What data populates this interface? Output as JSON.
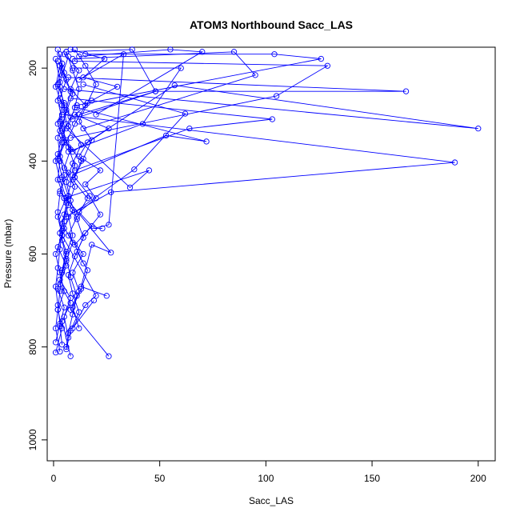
{
  "chart_data": {
    "type": "line",
    "title": "ATOM3 Northbound Sacc_LAS",
    "xlabel": "Sacc_LAS",
    "ylabel": "Pressure (mbar)",
    "xlim": [
      -3,
      208
    ],
    "ylim": [
      1045,
      155
    ],
    "y_reversed": true,
    "x_ticks": [
      0,
      50,
      100,
      150,
      200
    ],
    "y_ticks": [
      200,
      400,
      600,
      800,
      1000
    ],
    "grid": false,
    "legend": "none",
    "line_color": "#0000ff",
    "marker": "open-circle",
    "series": [
      {
        "x": [
          2,
          4,
          3,
          5,
          6,
          4,
          3,
          2,
          5,
          7,
          9,
          6,
          4,
          3,
          2,
          1,
          3
        ],
        "y": [
          160,
          200,
          240,
          280,
          320,
          360,
          400,
          440,
          480,
          520,
          560,
          600,
          640,
          680,
          720,
          760,
          810
        ]
      },
      {
        "x": [
          3,
          5,
          8,
          6,
          4,
          7,
          10,
          8,
          6,
          5,
          4,
          6,
          8,
          11,
          9,
          7,
          6
        ],
        "y": [
          170,
          210,
          250,
          290,
          330,
          370,
          410,
          450,
          490,
          530,
          570,
          610,
          650,
          690,
          730,
          770,
          800
        ]
      },
      {
        "x": [
          1,
          3,
          2,
          4,
          2,
          3,
          5,
          3,
          2,
          4,
          3,
          2,
          1,
          2,
          3,
          1
        ],
        "y": [
          180,
          230,
          270,
          310,
          350,
          390,
          430,
          470,
          510,
          550,
          590,
          630,
          670,
          710,
          750,
          790
        ]
      },
      {
        "x": [
          6,
          9,
          12,
          10,
          7,
          13,
          9,
          6,
          8,
          11,
          14,
          10,
          7,
          9,
          12,
          8,
          6
        ],
        "y": [
          165,
          205,
          245,
          285,
          325,
          365,
          405,
          445,
          485,
          525,
          565,
          605,
          645,
          685,
          725,
          765,
          805
        ]
      },
      {
        "x": [
          4,
          2,
          5,
          3,
          6,
          2,
          4,
          7,
          5,
          3,
          6,
          4,
          2,
          5,
          3,
          4
        ],
        "y": [
          190,
          235,
          275,
          315,
          355,
          395,
          435,
          475,
          515,
          555,
          595,
          635,
          675,
          715,
          755,
          795
        ]
      },
      {
        "x": [
          10,
          15,
          20,
          16,
          12,
          18,
          14,
          10,
          17,
          22,
          15,
          11,
          16,
          13,
          9,
          12
        ],
        "y": [
          160,
          195,
          235,
          275,
          315,
          355,
          395,
          435,
          475,
          515,
          555,
          595,
          635,
          675,
          715,
          760
        ]
      },
      {
        "x": [
          7,
          4,
          9,
          6,
          3,
          8,
          5,
          10,
          7,
          4,
          9,
          6,
          3,
          8,
          5,
          7
        ],
        "y": [
          175,
          215,
          255,
          295,
          335,
          375,
          415,
          455,
          495,
          535,
          575,
          615,
          655,
          695,
          735,
          780
        ]
      },
      {
        "x": [
          2,
          6,
          3,
          8,
          4,
          2,
          7,
          3,
          9,
          5,
          2,
          6,
          3,
          8,
          4,
          8
        ],
        "y": [
          185,
          225,
          265,
          305,
          345,
          385,
          425,
          465,
          505,
          545,
          585,
          625,
          665,
          705,
          745,
          820
        ]
      },
      {
        "x": [
          5,
          12,
          8,
          15,
          10,
          6,
          13,
          9,
          16,
          11,
          7,
          14,
          9,
          12,
          8,
          26
        ],
        "y": [
          170,
          205,
          245,
          280,
          320,
          360,
          400,
          440,
          480,
          520,
          560,
          600,
          640,
          680,
          720,
          820
        ]
      },
      {
        "x": [
          3,
          1,
          4,
          2,
          5,
          1,
          3,
          6,
          2,
          4,
          1,
          3,
          5,
          2,
          4,
          1
        ],
        "y": [
          195,
          240,
          280,
          320,
          360,
          400,
          440,
          480,
          520,
          560,
          600,
          640,
          680,
          720,
          760,
          812
        ]
      },
      {
        "x": [
          8,
          24,
          14,
          30,
          18,
          10,
          26,
          16,
          12,
          22,
          15,
          20,
          12,
          18,
          10,
          14
        ],
        "y": [
          160,
          180,
          220,
          240,
          270,
          300,
          330,
          360,
          390,
          420,
          450,
          480,
          510,
          540,
          580,
          620
        ]
      },
      {
        "x": [
          6,
          37,
          48,
          9
        ],
        "y": [
          165,
          160,
          250,
          310
        ]
      },
      {
        "x": [
          12,
          55,
          70,
          20
        ],
        "y": [
          175,
          160,
          165,
          300
        ]
      },
      {
        "x": [
          9,
          85,
          95,
          14
        ],
        "y": [
          180,
          165,
          215,
          330
        ]
      },
      {
        "x": [
          15,
          104,
          126,
          11
        ],
        "y": [
          170,
          170,
          180,
          280
        ]
      },
      {
        "x": [
          10,
          129,
          105,
          8
        ],
        "y": [
          185,
          195,
          260,
          350
        ]
      },
      {
        "x": [
          7,
          166,
          48,
          12
        ],
        "y": [
          220,
          250,
          250,
          300
        ]
      },
      {
        "x": [
          5,
          200,
          57,
          9
        ],
        "y": [
          245,
          330,
          237,
          380
        ]
      },
      {
        "x": [
          8,
          103,
          64,
          10
        ],
        "y": [
          265,
          310,
          330,
          420
        ]
      },
      {
        "x": [
          4,
          189,
          27,
          6
        ],
        "y": [
          300,
          403,
          467,
          520
        ]
      },
      {
        "x": [
          6,
          36,
          45,
          5
        ],
        "y": [
          330,
          457,
          420,
          480
        ]
      },
      {
        "x": [
          11,
          72,
          53,
          9
        ],
        "y": [
          285,
          358,
          345,
          430
        ]
      },
      {
        "x": [
          14,
          62,
          38,
          10
        ],
        "y": [
          235,
          298,
          418,
          510
        ]
      },
      {
        "x": [
          9,
          60,
          42,
          7
        ],
        "y": [
          200,
          200,
          320,
          380
        ]
      },
      {
        "x": [
          12,
          33,
          26,
          19,
          23
        ],
        "y": [
          225,
          170,
          537,
          545,
          545
        ]
      },
      {
        "x": [
          6,
          27,
          18,
          13,
          25
        ],
        "y": [
          480,
          597,
          580,
          670,
          690
        ]
      },
      {
        "x": [
          4,
          20,
          15,
          9,
          19
        ],
        "y": [
          560,
          690,
          710,
          760,
          700
        ]
      }
    ]
  }
}
